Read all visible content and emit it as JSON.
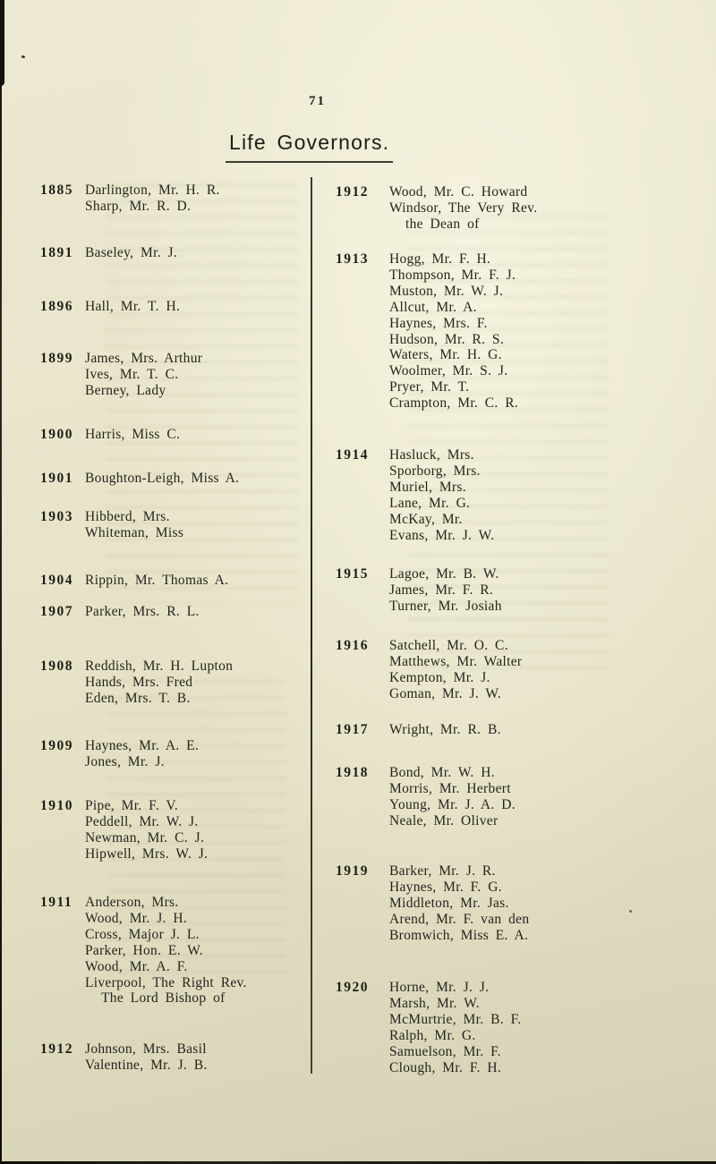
{
  "page": {
    "number": "71",
    "title": "Life Governors."
  },
  "colors": {
    "paper": "#e8e4ca",
    "ink": "#2a281f"
  },
  "columns": {
    "left": [
      {
        "year": "1885",
        "names": [
          "Darlington, Mr. H. R.",
          "Sharp, Mr. R. D."
        ]
      },
      {
        "year": "1891",
        "names": [
          "Baseley, Mr. J."
        ]
      },
      {
        "year": "1896",
        "names": [
          "Hall, Mr. T. H."
        ]
      },
      {
        "year": "1899",
        "names": [
          "James, Mrs. Arthur",
          "Ives, Mr. T. C.",
          "Berney, Lady"
        ]
      },
      {
        "year": "1900",
        "names": [
          "Harris, Miss C."
        ]
      },
      {
        "year": "1901",
        "names": [
          "Boughton-Leigh, Miss A."
        ]
      },
      {
        "year": "1903",
        "names": [
          "Hibberd, Mrs.",
          "Whiteman, Miss"
        ]
      },
      {
        "year": "1904",
        "names": [
          "Rippin, Mr. Thomas A."
        ]
      },
      {
        "year": "1907",
        "names": [
          "Parker, Mrs. R. L."
        ]
      },
      {
        "year": "1908",
        "names": [
          "Reddish, Mr. H. Lupton",
          "Hands, Mrs. Fred",
          "Eden, Mrs. T. B."
        ]
      },
      {
        "year": "1909",
        "names": [
          "Haynes, Mr. A. E.",
          "Jones, Mr. J."
        ]
      },
      {
        "year": "1910",
        "names": [
          "Pipe, Mr. F. V.",
          "Peddell, Mr. W. J.",
          "Newman, Mr. C. J.",
          "Hipwell, Mrs. W. J."
        ]
      },
      {
        "year": "1911",
        "names": [
          "Anderson, Mrs.",
          "Wood, Mr. J. H.",
          "Cross, Major J. L.",
          "Parker, Hon. E. W.",
          "Wood, Mr. A. F.",
          "Liverpool, The Right Rev.",
          "INDENT:The Lord Bishop of"
        ]
      },
      {
        "year": "1912",
        "names": [
          "Johnson, Mrs. Basil",
          "Valentine, Mr. J. B."
        ]
      }
    ],
    "right": [
      {
        "year": "1912",
        "names": [
          "Wood, Mr. C. Howard",
          "Windsor, The Very Rev.",
          "INDENT:the Dean of"
        ]
      },
      {
        "year": "1913",
        "names": [
          "Hogg, Mr. F. H.",
          "Thompson, Mr. F. J.",
          "Muston, Mr. W. J.",
          "Allcut, Mr. A.",
          "Haynes, Mrs. F.",
          "Hudson, Mr. R. S.",
          "Waters, Mr. H. G.",
          "Woolmer, Mr. S. J.",
          "Pryer, Mr. T.",
          "Crampton, Mr. C. R."
        ]
      },
      {
        "year": "1914",
        "names": [
          "Hasluck, Mrs.",
          "Sporborg, Mrs.",
          "Muriel, Mrs.",
          "Lane, Mr. G.",
          "McKay, Mr.",
          "Evans, Mr. J. W."
        ]
      },
      {
        "year": "1915",
        "names": [
          "Lagoe, Mr. B. W.",
          "James, Mr. F. R.",
          "Turner, Mr. Josiah"
        ]
      },
      {
        "year": "1916",
        "names": [
          "Satchell, Mr. O. C.",
          "Matthews, Mr. Walter",
          "Kempton, Mr. J.",
          "Goman, Mr. J. W."
        ]
      },
      {
        "year": "1917",
        "names": [
          "Wright, Mr. R. B."
        ]
      },
      {
        "year": "1918",
        "names": [
          "Bond, Mr. W. H.",
          "Morris, Mr. Herbert",
          "Young, Mr. J. A. D.",
          "Neale, Mr. Oliver"
        ]
      },
      {
        "year": "1919",
        "names": [
          "Barker, Mr. J. R.",
          "Haynes, Mr. F. G.",
          "Middleton, Mr. Jas.",
          "Arend, Mr. F. van den",
          "Bromwich, Miss E. A."
        ]
      },
      {
        "year": "1920",
        "names": [
          "Horne, Mr. J. J.",
          "Marsh, Mr. W.",
          "McMurtrie, Mr. B. F.",
          "Ralph, Mr. G.",
          "Samuelson, Mr. F.",
          "Clough, Mr. F. H."
        ]
      }
    ]
  }
}
